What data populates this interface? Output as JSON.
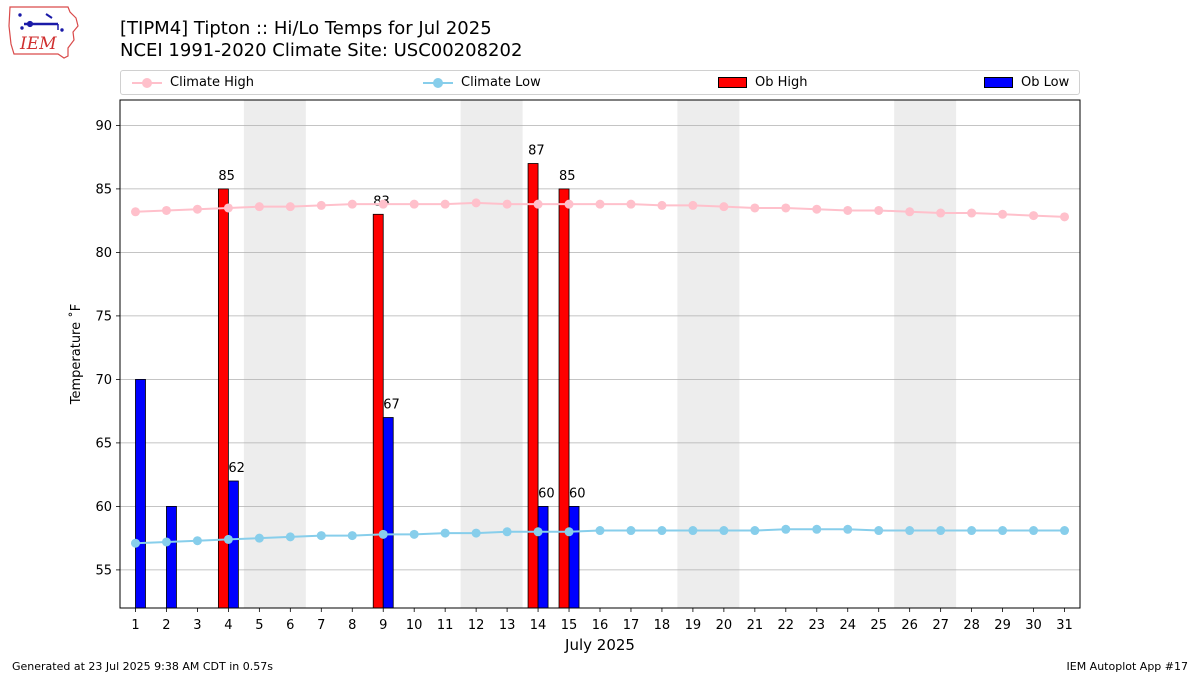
{
  "header": {
    "title_line1": "[TIPM4] Tipton :: Hi/Lo Temps for Jul 2025",
    "title_line2": "NCEI 1991-2020 Climate Site: USC00208202",
    "logo_text": "IEM"
  },
  "footer": {
    "generated": "Generated at 23 Jul 2025 9:38 AM CDT in 0.57s",
    "app": "IEM Autoplot App #17"
  },
  "colors": {
    "climate_high": "#ffc0cb",
    "climate_low": "#87ceeb",
    "ob_high": "#ff0000",
    "ob_low": "#0000ff",
    "weekend_shade": "#ededed",
    "grid": "#b0b0b0"
  },
  "legend": {
    "position": "top",
    "items": [
      {
        "label": "Climate High",
        "kind": "line"
      },
      {
        "label": "Climate Low",
        "kind": "line"
      },
      {
        "label": "Ob High",
        "kind": "bar"
      },
      {
        "label": "Ob Low",
        "kind": "bar"
      }
    ]
  },
  "chart_data": {
    "type": "bar",
    "title": "[TIPM4] Tipton :: Hi/Lo Temps for Jul 2025",
    "subtitle": "NCEI 1991-2020 Climate Site: USC00208202",
    "xlabel": "July 2025",
    "ylabel": "Temperature ˚F",
    "ylim": [
      52,
      92
    ],
    "yticks": [
      55,
      60,
      65,
      70,
      75,
      80,
      85,
      90
    ],
    "grid": "y",
    "categories": [
      "1",
      "2",
      "3",
      "4",
      "5",
      "6",
      "7",
      "8",
      "9",
      "10",
      "11",
      "12",
      "13",
      "14",
      "15",
      "16",
      "17",
      "18",
      "19",
      "20",
      "21",
      "22",
      "23",
      "24",
      "25",
      "26",
      "27",
      "28",
      "29",
      "30",
      "31"
    ],
    "shaded_days": [
      [
        5,
        6
      ],
      [
        12,
        13
      ],
      [
        19,
        20
      ],
      [
        26,
        27
      ]
    ],
    "series": [
      {
        "name": "Climate High",
        "type": "line",
        "values": [
          83.2,
          83.3,
          83.4,
          83.5,
          83.6,
          83.6,
          83.7,
          83.8,
          83.8,
          83.8,
          83.8,
          83.9,
          83.8,
          83.8,
          83.8,
          83.8,
          83.8,
          83.7,
          83.7,
          83.6,
          83.5,
          83.5,
          83.4,
          83.3,
          83.3,
          83.2,
          83.1,
          83.1,
          83.0,
          82.9,
          82.8
        ]
      },
      {
        "name": "Climate Low",
        "type": "line",
        "values": [
          57.1,
          57.2,
          57.3,
          57.4,
          57.5,
          57.6,
          57.7,
          57.7,
          57.8,
          57.8,
          57.9,
          57.9,
          58.0,
          58.0,
          58.0,
          58.1,
          58.1,
          58.1,
          58.1,
          58.1,
          58.1,
          58.2,
          58.2,
          58.2,
          58.1,
          58.1,
          58.1,
          58.1,
          58.1,
          58.1,
          58.1
        ]
      },
      {
        "name": "Ob High",
        "type": "bar",
        "values": [
          null,
          null,
          null,
          85,
          null,
          null,
          null,
          null,
          83,
          null,
          null,
          null,
          null,
          87,
          85,
          null,
          null,
          null,
          null,
          null,
          null,
          null,
          null,
          null,
          null,
          null,
          null,
          null,
          null,
          null,
          null
        ],
        "labels": [
          "",
          "",
          "",
          "85",
          "",
          "",
          "",
          "",
          "83",
          "",
          "",
          "",
          "",
          "87",
          "85",
          "",
          "",
          "",
          "",
          "",
          "",
          "",
          "",
          "",
          "",
          "",
          "",
          "",
          "",
          "",
          ""
        ]
      },
      {
        "name": "Ob Low",
        "type": "bar",
        "values": [
          70,
          60,
          null,
          62,
          null,
          null,
          null,
          null,
          67,
          null,
          null,
          null,
          null,
          60,
          60,
          null,
          null,
          null,
          null,
          null,
          null,
          null,
          null,
          null,
          null,
          null,
          null,
          null,
          null,
          null,
          null
        ],
        "labels": [
          "",
          "",
          "",
          "62",
          "",
          "",
          "",
          "",
          "67",
          "",
          "",
          "",
          "",
          "60",
          "60",
          "",
          "",
          "",
          "",
          "",
          "",
          "",
          "",
          "",
          "",
          "",
          "",
          "",
          "",
          "",
          ""
        ]
      }
    ]
  }
}
